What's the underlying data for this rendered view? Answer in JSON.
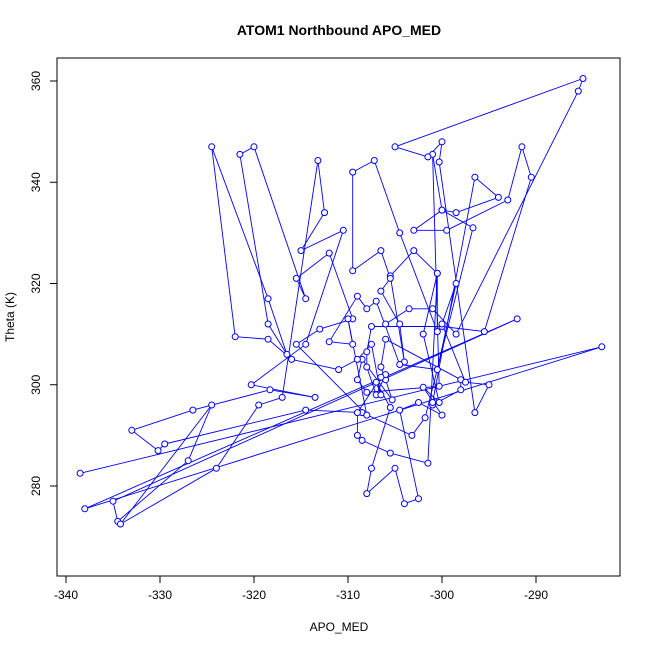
{
  "chart_data": {
    "type": "line",
    "title": "ATOM1 Northbound APO_MED",
    "xlabel": "APO_MED",
    "ylabel": "Theta (K)",
    "xlim": [
      -339.5,
      -281
    ],
    "ylim": [
      268,
      366
    ],
    "xticks": [
      -340,
      -330,
      -320,
      -310,
      -300,
      -290
    ],
    "yticks": [
      280,
      300,
      320,
      340,
      360
    ],
    "grid": false,
    "markers": "open-circle",
    "series": [
      {
        "color": "#0000ff",
        "points": [
          [
            -338.5,
            282.5
          ],
          [
            -283,
            307.5
          ],
          [
            -338,
            275.5
          ],
          [
            -292,
            313
          ],
          [
            -335,
            277
          ],
          [
            -334.5,
            273
          ],
          [
            -327,
            285
          ],
          [
            -324.5,
            296
          ],
          [
            -334.2,
            272.5
          ],
          [
            -324,
            283.5
          ],
          [
            -319.5,
            296
          ],
          [
            -317,
            297.5
          ],
          [
            -313.2,
            344.3
          ],
          [
            -312.5,
            334
          ],
          [
            -315,
            326.5
          ],
          [
            -310.5,
            330.5
          ],
          [
            -314.5,
            308
          ],
          [
            -320.3,
            300
          ],
          [
            -313.5,
            297.5
          ],
          [
            -318.3,
            299
          ],
          [
            -326.5,
            295
          ],
          [
            -333,
            291
          ],
          [
            -330.2,
            287
          ],
          [
            -329.5,
            288.3
          ],
          [
            -314.5,
            295
          ],
          [
            -308.5,
            294.5
          ],
          [
            -303.2,
            290
          ],
          [
            -301.8,
            293.5
          ],
          [
            -296.7,
            331
          ],
          [
            -300,
            334.5
          ],
          [
            -301,
            345.5
          ],
          [
            -300.3,
            299.7
          ],
          [
            -308,
            298.5
          ],
          [
            -309,
            301
          ],
          [
            -308.5,
            305
          ],
          [
            -305.3,
            297
          ],
          [
            -306,
            301
          ],
          [
            -306.5,
            303.5
          ],
          [
            -306,
            309
          ],
          [
            -298,
            301
          ],
          [
            -298,
            299
          ],
          [
            -301,
            296
          ],
          [
            -301,
            296.5
          ],
          [
            -296.5,
            341
          ],
          [
            -294,
            337
          ],
          [
            -298.5,
            334
          ],
          [
            -300,
            334.5
          ],
          [
            -303,
            330.5
          ],
          [
            -299.5,
            330.5
          ],
          [
            -293,
            336.5
          ],
          [
            -291.5,
            347
          ],
          [
            -290.5,
            341
          ],
          [
            -295.5,
            310.5
          ],
          [
            -300,
            311.5
          ],
          [
            -307.5,
            311.5
          ],
          [
            -308,
            306.5
          ],
          [
            -308,
            303.5
          ],
          [
            -307,
            298
          ],
          [
            -306,
            302
          ],
          [
            -306.5,
            301.5
          ],
          [
            -309,
            294.5
          ],
          [
            -309,
            290
          ],
          [
            -308.5,
            289
          ],
          [
            -305.5,
            286.5
          ],
          [
            -301.5,
            284.5
          ],
          [
            -300.5,
            322
          ],
          [
            -303,
            326.5
          ],
          [
            -305.5,
            321.5
          ],
          [
            -304,
            304.5
          ],
          [
            -304.5,
            312
          ],
          [
            -306.5,
            318.5
          ],
          [
            -305.5,
            321
          ],
          [
            -306.5,
            326.5
          ],
          [
            -309.5,
            322.5
          ],
          [
            -309.5,
            342
          ],
          [
            -307.2,
            344.3
          ],
          [
            -304.5,
            330
          ],
          [
            -300.5,
            310.5
          ],
          [
            -300.5,
            322
          ],
          [
            -302,
            310
          ],
          [
            -300.3,
            296.5
          ],
          [
            -302,
            299.5
          ],
          [
            -300,
            294
          ],
          [
            -302.5,
            296.5
          ],
          [
            -304.5,
            295
          ],
          [
            -302.5,
            277.5
          ],
          [
            -304,
            276.5
          ],
          [
            -305,
            283.5
          ],
          [
            -308,
            278.5
          ],
          [
            -307.5,
            283.5
          ],
          [
            -305.5,
            295.5
          ],
          [
            -307,
            300.5
          ],
          [
            -306.5,
            298
          ],
          [
            -307.5,
            308
          ],
          [
            -309,
            305
          ],
          [
            -311,
            303
          ],
          [
            -316,
            305
          ],
          [
            -318.5,
            309
          ],
          [
            -322,
            309.5
          ],
          [
            -324.5,
            347
          ],
          [
            -318.5,
            317
          ],
          [
            -316.5,
            306
          ],
          [
            -318.5,
            312
          ],
          [
            -321.5,
            345.5
          ],
          [
            -320,
            347
          ],
          [
            -314.5,
            317
          ],
          [
            -315.5,
            321
          ],
          [
            -312,
            326
          ],
          [
            -309.5,
            313
          ],
          [
            -313,
            311
          ],
          [
            -315.5,
            308
          ],
          [
            -308,
            294
          ],
          [
            -310,
            313
          ],
          [
            -309.5,
            308
          ],
          [
            -312,
            308.5
          ],
          [
            -309,
            317.5
          ],
          [
            -308,
            315
          ],
          [
            -307,
            316.5
          ],
          [
            -304.5,
            304
          ],
          [
            -300.5,
            303
          ],
          [
            -298.5,
            320
          ],
          [
            -300,
            312
          ],
          [
            -297.5,
            300.5
          ],
          [
            -295,
            300
          ],
          [
            -296.5,
            294.5
          ],
          [
            -300.3,
            344
          ],
          [
            -300,
            348
          ],
          [
            -301.5,
            345
          ],
          [
            -305,
            347
          ],
          [
            -285,
            360.5
          ],
          [
            -285.5,
            358
          ],
          [
            -298.5,
            310
          ],
          [
            -301,
            315
          ],
          [
            -303.5,
            315
          ],
          [
            -306,
            312
          ]
        ]
      }
    ]
  }
}
